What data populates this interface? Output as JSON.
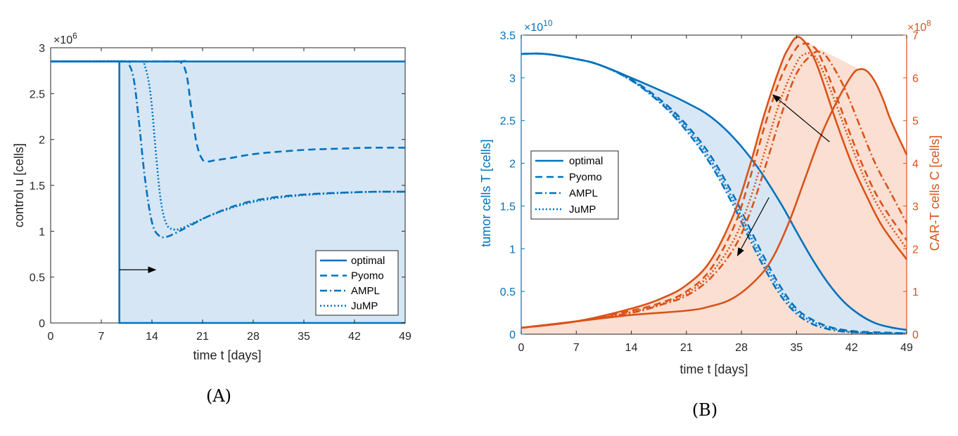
{
  "chart_data": [
    {
      "type": "line",
      "caption": "(A)",
      "xlabel": "time t [days]",
      "ylabel": "control u [cells]",
      "y_exponent": "×10",
      "y_exponent_power": "6",
      "xlim": [
        0,
        49
      ],
      "ylim": [
        0,
        3
      ],
      "xticks": [
        0,
        7,
        14,
        21,
        28,
        35,
        42,
        49
      ],
      "yticks": [
        0,
        0.5,
        1,
        1.5,
        2,
        2.5,
        3
      ],
      "ytick_labels": [
        "0",
        "0.5",
        "1",
        "1.5",
        "2",
        "2.5",
        "3"
      ],
      "legend_position": "bottom-right",
      "colors": {
        "line": "#0072BD",
        "fill": "#D6E6F4"
      },
      "series": [
        {
          "name": "optimal",
          "style": "solid",
          "x": [
            0,
            9.5,
            9.5,
            49
          ],
          "y": [
            2.85,
            2.85,
            0,
            0
          ]
        },
        {
          "name": "Pyomo",
          "style": "dashed",
          "x": [
            0,
            17,
            18,
            18.8,
            19.5,
            20.2,
            21,
            21.8,
            22.5,
            25,
            28,
            32,
            36,
            40,
            44,
            49
          ],
          "y": [
            2.85,
            2.85,
            2.84,
            2.7,
            2.3,
            1.95,
            1.78,
            1.76,
            1.77,
            1.8,
            1.84,
            1.87,
            1.89,
            1.9,
            1.91,
            1.91
          ]
        },
        {
          "name": "AMPL",
          "style": "dashdot",
          "x": [
            0,
            10,
            10.8,
            11.5,
            12.2,
            13,
            14,
            15,
            16,
            17,
            19,
            22,
            26,
            30,
            35,
            40,
            45,
            49
          ],
          "y": [
            2.85,
            2.85,
            2.82,
            2.65,
            2.2,
            1.6,
            1.1,
            0.95,
            0.94,
            0.97,
            1.05,
            1.17,
            1.29,
            1.36,
            1.4,
            1.42,
            1.43,
            1.43
          ]
        },
        {
          "name": "JuMP",
          "style": "dotted",
          "x": [
            0,
            12,
            13,
            13.8,
            14.5,
            15.2,
            16,
            17,
            18,
            20,
            23,
            27,
            31,
            36,
            41,
            45,
            49
          ],
          "y": [
            2.85,
            2.85,
            2.8,
            2.5,
            1.9,
            1.35,
            1.08,
            1.02,
            1.03,
            1.1,
            1.2,
            1.3,
            1.36,
            1.4,
            1.42,
            1.43,
            1.43
          ]
        }
      ],
      "annotations": [
        {
          "type": "arrow",
          "from": [
            9.5,
            0.58
          ],
          "to": [
            14.5,
            0.58
          ]
        }
      ]
    },
    {
      "type": "line",
      "caption": "(B)",
      "xlabel": "time t [days]",
      "ylabel_left": "tumor cells T [cells]",
      "ylabel_right": "CAR-T cells C [cells]",
      "y_left_exponent": "×10",
      "y_left_exponent_power": "10",
      "y_right_exponent": "×10",
      "y_right_exponent_power": "8",
      "xlim": [
        0,
        49
      ],
      "ylim_left": [
        0,
        3.5
      ],
      "ylim_right": [
        0,
        7
      ],
      "xticks": [
        0,
        7,
        14,
        21,
        28,
        35,
        42,
        49
      ],
      "yticks_left": [
        0,
        0.5,
        1,
        1.5,
        2,
        2.5,
        3,
        3.5
      ],
      "yticks_left_labels": [
        "0",
        "0.5",
        "1",
        "1.5",
        "2",
        "2.5",
        "3",
        "3.5"
      ],
      "yticks_right": [
        0,
        1,
        2,
        3,
        4,
        5,
        6,
        7
      ],
      "yticks_right_labels": [
        "0",
        "1",
        "2",
        "3",
        "4",
        "5",
        "6",
        "7"
      ],
      "legend_position": "left",
      "colors": {
        "tumor": "#0072BD",
        "cart": "#D95319",
        "tumor_fill": "#D6E6F4",
        "cart_fill": "#FBDFD2"
      },
      "series": [
        {
          "name": "optimal",
          "axis": "left",
          "style": "solid",
          "x": [
            0,
            3,
            7,
            10,
            14,
            18,
            21,
            24,
            27,
            30,
            33,
            35,
            37,
            39,
            41,
            43,
            45,
            47,
            49
          ],
          "y": [
            3.28,
            3.28,
            3.22,
            3.15,
            3.0,
            2.84,
            2.71,
            2.55,
            2.3,
            1.96,
            1.53,
            1.2,
            0.88,
            0.6,
            0.38,
            0.23,
            0.13,
            0.08,
            0.05
          ]
        },
        {
          "name": "Pyomo",
          "axis": "left",
          "style": "dashed",
          "x": [
            0,
            3,
            7,
            10,
            14,
            18,
            21,
            24,
            27,
            29,
            31,
            33,
            35,
            37,
            39,
            41,
            43,
            46,
            49
          ],
          "y": [
            3.28,
            3.28,
            3.22,
            3.15,
            2.98,
            2.72,
            2.45,
            2.1,
            1.62,
            1.25,
            0.88,
            0.55,
            0.3,
            0.17,
            0.09,
            0.05,
            0.03,
            0.02,
            0.01
          ]
        },
        {
          "name": "AMPL",
          "axis": "left",
          "style": "dashdot",
          "x": [
            0,
            3,
            7,
            10,
            14,
            18,
            21,
            24,
            27,
            29,
            31,
            33,
            35,
            37,
            39,
            41,
            43,
            46,
            49
          ],
          "y": [
            3.28,
            3.28,
            3.22,
            3.15,
            2.97,
            2.68,
            2.38,
            2.0,
            1.5,
            1.12,
            0.76,
            0.45,
            0.24,
            0.12,
            0.06,
            0.03,
            0.02,
            0.01,
            0.01
          ]
        },
        {
          "name": "JuMP",
          "axis": "left",
          "style": "dotted",
          "x": [
            0,
            3,
            7,
            10,
            14,
            18,
            21,
            24,
            27,
            29,
            31,
            33,
            35,
            37,
            39,
            41,
            43,
            46,
            49
          ],
          "y": [
            3.28,
            3.28,
            3.22,
            3.15,
            2.97,
            2.7,
            2.42,
            2.05,
            1.56,
            1.18,
            0.82,
            0.5,
            0.27,
            0.15,
            0.08,
            0.04,
            0.02,
            0.01,
            0.01
          ]
        },
        {
          "name": "optimal",
          "axis": "right",
          "style": "solid",
          "x": [
            0,
            7,
            14,
            21,
            24,
            27,
            30,
            32,
            34,
            36,
            38,
            40,
            42,
            43,
            44,
            45,
            46,
            47,
            49
          ],
          "y": [
            0.15,
            0.3,
            0.45,
            0.55,
            0.65,
            0.85,
            1.3,
            1.8,
            2.6,
            3.6,
            4.6,
            5.4,
            6.05,
            6.2,
            6.15,
            5.9,
            5.5,
            5.0,
            4.2
          ]
        },
        {
          "name": "Pyomo",
          "axis": "right",
          "style": "dashed",
          "x": [
            0,
            7,
            14,
            18,
            21,
            24,
            27,
            29,
            31,
            33,
            35,
            36,
            37,
            38,
            40,
            42,
            44,
            46,
            49
          ],
          "y": [
            0.15,
            0.3,
            0.55,
            0.75,
            1.0,
            1.5,
            2.5,
            3.6,
            4.9,
            6.0,
            6.7,
            6.8,
            6.75,
            6.5,
            5.6,
            4.6,
            3.7,
            3.0,
            2.2
          ]
        },
        {
          "name": "AMPL",
          "axis": "right",
          "style": "dashdot",
          "x": [
            0,
            7,
            14,
            18,
            21,
            24,
            27,
            29,
            31,
            33,
            35,
            37,
            38,
            39,
            41,
            43,
            45,
            47,
            49
          ],
          "y": [
            0.15,
            0.3,
            0.5,
            0.7,
            0.9,
            1.3,
            2.0,
            2.8,
            3.9,
            5.1,
            6.1,
            6.55,
            6.6,
            6.45,
            5.8,
            4.9,
            4.0,
            3.3,
            2.6
          ]
        },
        {
          "name": "JuMP",
          "axis": "right",
          "style": "dotted",
          "x": [
            0,
            7,
            14,
            18,
            21,
            24,
            27,
            29,
            31,
            33,
            35,
            36,
            37,
            38,
            40,
            42,
            44,
            46,
            49
          ],
          "y": [
            0.15,
            0.3,
            0.52,
            0.72,
            0.95,
            1.4,
            2.2,
            3.1,
            4.3,
            5.5,
            6.35,
            6.55,
            6.55,
            6.3,
            5.4,
            4.4,
            3.5,
            2.8,
            2.0
          ]
        },
        {
          "name": "",
          "axis": "right",
          "style": "solid",
          "role": "cart-main",
          "x": [
            0,
            7,
            14,
            18,
            21,
            24,
            27,
            29,
            31,
            33,
            34,
            35,
            36,
            37,
            38,
            40,
            42,
            44,
            46,
            49
          ],
          "y": [
            0.15,
            0.3,
            0.6,
            0.85,
            1.15,
            1.7,
            2.8,
            3.9,
            5.2,
            6.3,
            6.7,
            6.95,
            6.85,
            6.55,
            6.1,
            5.0,
            4.0,
            3.2,
            2.5,
            1.75
          ]
        }
      ],
      "annotations": [
        {
          "type": "arrow",
          "axis": "right",
          "from": [
            39.2,
            4.5
          ],
          "to": [
            32,
            5.6
          ]
        },
        {
          "type": "arrow",
          "axis": "left",
          "from": [
            31.5,
            1.6
          ],
          "to": [
            27.5,
            0.92
          ]
        }
      ]
    }
  ]
}
